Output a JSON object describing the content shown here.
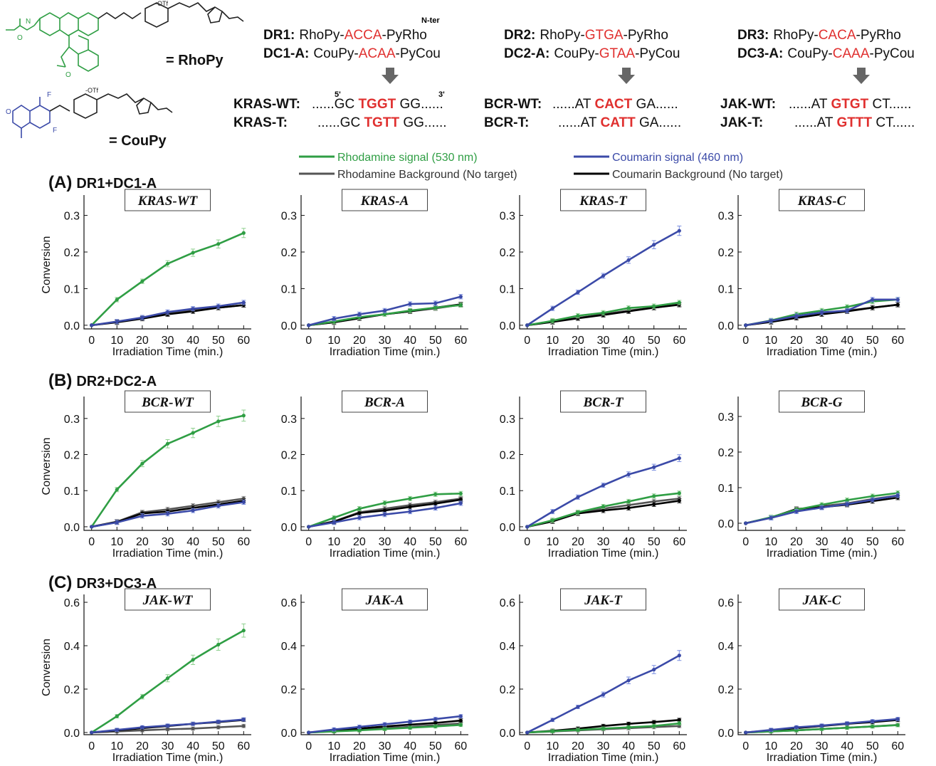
{
  "header": {
    "dyes": [
      {
        "label": "= RhoPy",
        "color": "#2f9e44",
        "counter_ion": "-OTf"
      },
      {
        "label": "= CouPy",
        "color": "#3b4aa8",
        "counter_ion": "-OTf"
      }
    ],
    "nter_label": "N-ter",
    "probe_groups": [
      {
        "dr": {
          "name": "DR1:",
          "prefix": "RhoPy-",
          "seq": "ACCA",
          "suffix": "-PyRho"
        },
        "dc": {
          "name": "DC1-A:",
          "prefix": "CouPy-",
          "seq": "ACAA",
          "suffix": "-PyCou"
        },
        "targets": [
          {
            "name": "KRAS-WT:",
            "left": "......GC ",
            "core": "TGGT",
            "right": " GG......",
            "five": "5'",
            "three": "3'"
          },
          {
            "name": "KRAS-T:",
            "left": "......GC ",
            "core": "TGTT",
            "right": " GG......"
          }
        ]
      },
      {
        "dr": {
          "name": "DR2:",
          "prefix": "RhoPy-",
          "seq": "GTGA",
          "suffix": "-PyRho"
        },
        "dc": {
          "name": "DC2-A:",
          "prefix": "CouPy-",
          "seq": "GTAA",
          "suffix": "-PyCou"
        },
        "targets": [
          {
            "name": "BCR-WT:",
            "left": "......AT ",
            "core": "CACT",
            "right": " GA......"
          },
          {
            "name": "BCR-T:",
            "left": "......AT ",
            "core": "CATT",
            "right": " GA......"
          }
        ]
      },
      {
        "dr": {
          "name": "DR3:",
          "prefix": "RhoPy-",
          "seq": "CACA",
          "suffix": "-PyRho"
        },
        "dc": {
          "name": "DC3-A:",
          "prefix": "CouPy-",
          "seq": "CAAA",
          "suffix": "-PyCou"
        },
        "targets": [
          {
            "name": "JAK-WT:",
            "left": "......AT ",
            "core": "GTGT",
            "right": " CT......"
          },
          {
            "name": "JAK-T:",
            "left": "......AT ",
            "core": "GTTT",
            "right": " CT......"
          }
        ]
      }
    ]
  },
  "legend": [
    {
      "label": "Rhodamine signal (530 nm)",
      "color": "#2f9e44",
      "text_color": "#2f9e44"
    },
    {
      "label": "Coumarin signal (460 nm)",
      "color": "#3b4aa8",
      "text_color": "#3b4aa8"
    },
    {
      "label": "Rhodamine Background (No target)",
      "color": "#555555",
      "text_color": "#333333"
    },
    {
      "label": "Coumarin Background (No target)",
      "color": "#000000",
      "text_color": "#333333"
    }
  ],
  "colors": {
    "rho": "#2f9e44",
    "cou": "#3b4aa8",
    "rho_bg": "#555555",
    "cou_bg": "#000000",
    "highlight": "#e0302f",
    "errorbar_rho": "#8fd08f",
    "errorbar_cou": "#7b8fe0"
  },
  "chart_data": [
    {
      "type": "line",
      "row": "(A) DR1+DC1-A",
      "title": "KRAS-WT",
      "xlabel": "Irradiation Time (min.)",
      "ylabel": "Conversion",
      "ylim": [
        -0.01,
        0.34
      ],
      "yticks": [
        "0.0",
        "0.1",
        "0.2",
        "0.3"
      ],
      "x": [
        0,
        10,
        20,
        30,
        40,
        50,
        60
      ],
      "series": [
        {
          "key": "rho",
          "values": [
            0,
            0.07,
            0.12,
            0.168,
            0.198,
            0.222,
            0.252
          ]
        },
        {
          "key": "rho_bg",
          "values": [
            0,
            0.009,
            0.02,
            0.032,
            0.042,
            0.048,
            0.055
          ]
        },
        {
          "key": "cou_bg",
          "values": [
            0,
            0.008,
            0.018,
            0.03,
            0.038,
            0.048,
            0.055
          ]
        },
        {
          "key": "cou",
          "values": [
            0,
            0.01,
            0.021,
            0.036,
            0.045,
            0.052,
            0.062
          ]
        }
      ]
    },
    {
      "type": "line",
      "title": "KRAS-A",
      "xlabel": "Irradiation Time (min.)",
      "ylim": [
        -0.01,
        0.34
      ],
      "yticks": [
        "0.0",
        "0.1",
        "0.2",
        "0.3"
      ],
      "x": [
        0,
        10,
        20,
        30,
        40,
        50,
        60
      ],
      "series": [
        {
          "key": "rho",
          "values": [
            0,
            0.01,
            0.022,
            0.03,
            0.04,
            0.048,
            0.055
          ]
        },
        {
          "key": "rho_bg",
          "values": [
            0,
            0.008,
            0.02,
            0.03,
            0.038,
            0.046,
            0.056
          ]
        },
        {
          "key": "cou_bg",
          "values": [
            0,
            0.008,
            0.019,
            0.03,
            0.038,
            0.048,
            0.057
          ]
        },
        {
          "key": "cou",
          "values": [
            0,
            0.018,
            0.03,
            0.04,
            0.058,
            0.06,
            0.078
          ]
        }
      ]
    },
    {
      "type": "line",
      "title": "KRAS-T",
      "xlabel": "Irradiation Time (min.)",
      "ylim": [
        -0.01,
        0.34
      ],
      "yticks": [
        "0.0",
        "0.1",
        "0.2",
        "0.3"
      ],
      "x": [
        0,
        10,
        20,
        30,
        40,
        50,
        60
      ],
      "series": [
        {
          "key": "rho",
          "values": [
            0,
            0.012,
            0.026,
            0.034,
            0.047,
            0.052,
            0.062
          ]
        },
        {
          "key": "rho_bg",
          "values": [
            0,
            0.01,
            0.02,
            0.03,
            0.04,
            0.048,
            0.057
          ]
        },
        {
          "key": "cou_bg",
          "values": [
            0,
            0.009,
            0.019,
            0.028,
            0.038,
            0.048,
            0.056
          ]
        },
        {
          "key": "cou",
          "values": [
            0,
            0.046,
            0.09,
            0.135,
            0.178,
            0.22,
            0.258
          ]
        }
      ]
    },
    {
      "type": "line",
      "title": "KRAS-C",
      "xlabel": "Irradiation Time (min.)",
      "ylim": [
        -0.01,
        0.34
      ],
      "yticks": [
        "0.0",
        "0.1",
        "0.2",
        "0.3"
      ],
      "x": [
        0,
        10,
        20,
        30,
        40,
        50,
        60
      ],
      "series": [
        {
          "key": "rho",
          "values": [
            0,
            0.013,
            0.03,
            0.04,
            0.05,
            0.065,
            0.07
          ]
        },
        {
          "key": "rho_bg",
          "values": [
            0,
            0.01,
            0.022,
            0.03,
            0.04,
            0.048,
            0.056
          ]
        },
        {
          "key": "cou_bg",
          "values": [
            0,
            0.009,
            0.02,
            0.03,
            0.038,
            0.048,
            0.056
          ]
        },
        {
          "key": "cou",
          "values": [
            0,
            0.012,
            0.025,
            0.035,
            0.04,
            0.07,
            0.07
          ]
        }
      ]
    },
    {
      "type": "line",
      "row": "(B) DR2+DC2-A",
      "title": "BCR-WT",
      "xlabel": "Irradiation Time (min.)",
      "ylabel": "Conversion",
      "ylim": [
        -0.01,
        0.345
      ],
      "yticks": [
        "0.0",
        "0.1",
        "0.2",
        "0.3"
      ],
      "x": [
        0,
        10,
        20,
        30,
        40,
        50,
        60
      ],
      "series": [
        {
          "key": "rho",
          "values": [
            0,
            0.103,
            0.175,
            0.23,
            0.26,
            0.292,
            0.308
          ]
        },
        {
          "key": "rho_bg",
          "values": [
            0,
            0.014,
            0.04,
            0.048,
            0.058,
            0.068,
            0.078
          ]
        },
        {
          "key": "cou_bg",
          "values": [
            0,
            0.013,
            0.037,
            0.042,
            0.052,
            0.062,
            0.072
          ]
        },
        {
          "key": "cou",
          "values": [
            0,
            0.012,
            0.03,
            0.036,
            0.045,
            0.058,
            0.068
          ]
        }
      ]
    },
    {
      "type": "line",
      "title": "BCR-A",
      "xlabel": "Irradiation Time (min.)",
      "ylim": [
        -0.01,
        0.345
      ],
      "yticks": [
        "0.0",
        "0.1",
        "0.2",
        "0.3"
      ],
      "x": [
        0,
        10,
        20,
        30,
        40,
        50,
        60
      ],
      "series": [
        {
          "key": "rho",
          "values": [
            0,
            0.025,
            0.05,
            0.066,
            0.078,
            0.09,
            0.092
          ]
        },
        {
          "key": "rho_bg",
          "values": [
            0,
            0.015,
            0.04,
            0.05,
            0.06,
            0.068,
            0.078
          ]
        },
        {
          "key": "cou_bg",
          "values": [
            0,
            0.014,
            0.038,
            0.045,
            0.055,
            0.064,
            0.075
          ]
        },
        {
          "key": "cou",
          "values": [
            0,
            0.012,
            0.025,
            0.034,
            0.042,
            0.052,
            0.065
          ]
        }
      ]
    },
    {
      "type": "line",
      "title": "BCR-T",
      "xlabel": "Irradiation Time (min.)",
      "ylim": [
        -0.01,
        0.345
      ],
      "yticks": [
        "0.0",
        "0.1",
        "0.2",
        "0.3"
      ],
      "x": [
        0,
        10,
        20,
        30,
        40,
        50,
        60
      ],
      "series": [
        {
          "key": "rho",
          "values": [
            0,
            0.018,
            0.04,
            0.056,
            0.07,
            0.085,
            0.093
          ]
        },
        {
          "key": "rho_bg",
          "values": [
            0,
            0.015,
            0.038,
            0.05,
            0.06,
            0.07,
            0.078
          ]
        },
        {
          "key": "cou_bg",
          "values": [
            0,
            0.015,
            0.037,
            0.045,
            0.052,
            0.062,
            0.072
          ]
        },
        {
          "key": "cou",
          "values": [
            0,
            0.042,
            0.082,
            0.115,
            0.145,
            0.165,
            0.19
          ]
        }
      ]
    },
    {
      "type": "line",
      "title": "BCR-G",
      "xlabel": "Irradiation Time (min.)",
      "ylim": [
        -0.02,
        0.34
      ],
      "yticks": [
        "0.0",
        "0.1",
        "0.2",
        "0.3"
      ],
      "x": [
        0,
        10,
        20,
        30,
        40,
        50,
        60
      ],
      "series": [
        {
          "key": "rho",
          "values": [
            0,
            0.017,
            0.038,
            0.052,
            0.065,
            0.076,
            0.085
          ]
        },
        {
          "key": "rho_bg",
          "values": [
            0,
            0.016,
            0.036,
            0.048,
            0.056,
            0.068,
            0.078
          ]
        },
        {
          "key": "cou_bg",
          "values": [
            0,
            0.016,
            0.04,
            0.045,
            0.052,
            0.062,
            0.072
          ]
        },
        {
          "key": "cou",
          "values": [
            0,
            0.015,
            0.033,
            0.044,
            0.054,
            0.066,
            0.078
          ]
        }
      ]
    },
    {
      "type": "line",
      "row": "(C) DR3+DC3-A",
      "title": "JAK-WT",
      "xlabel": "Irradiation Time (min.)",
      "ylabel": "Conversion",
      "ylim": [
        -0.01,
        0.61
      ],
      "yticks": [
        "0.0",
        "0.2",
        "0.4",
        "0.6"
      ],
      "x": [
        0,
        10,
        20,
        30,
        40,
        50,
        60
      ],
      "series": [
        {
          "key": "rho",
          "values": [
            0,
            0.075,
            0.165,
            0.25,
            0.335,
            0.405,
            0.47
          ]
        },
        {
          "key": "rho_bg",
          "values": [
            0,
            0.005,
            0.01,
            0.015,
            0.018,
            0.024,
            0.03
          ]
        },
        {
          "key": "cou_bg",
          "values": [
            0,
            0.01,
            0.02,
            0.03,
            0.04,
            0.048,
            0.058
          ]
        },
        {
          "key": "cou",
          "values": [
            0,
            0.012,
            0.024,
            0.032,
            0.04,
            0.05,
            0.06
          ]
        }
      ]
    },
    {
      "type": "line",
      "title": "JAK-A",
      "xlabel": "Irradiation Time (min.)",
      "ylim": [
        -0.01,
        0.61
      ],
      "yticks": [
        "0.0",
        "0.2",
        "0.4",
        "0.6"
      ],
      "x": [
        0,
        10,
        20,
        30,
        40,
        50,
        60
      ],
      "series": [
        {
          "key": "rho",
          "values": [
            0,
            0.005,
            0.01,
            0.016,
            0.022,
            0.028,
            0.035
          ]
        },
        {
          "key": "rho_bg",
          "values": [
            0,
            0.006,
            0.012,
            0.02,
            0.026,
            0.034,
            0.042
          ]
        },
        {
          "key": "cou_bg",
          "values": [
            0,
            0.008,
            0.018,
            0.028,
            0.036,
            0.044,
            0.055
          ]
        },
        {
          "key": "cou",
          "values": [
            0,
            0.014,
            0.026,
            0.038,
            0.05,
            0.062,
            0.075
          ]
        }
      ]
    },
    {
      "type": "line",
      "title": "JAK-T",
      "xlabel": "Irradiation Time (min.)",
      "ylim": [
        -0.01,
        0.61
      ],
      "yticks": [
        "0.0",
        "0.2",
        "0.4",
        "0.6"
      ],
      "x": [
        0,
        10,
        20,
        30,
        40,
        50,
        60
      ],
      "series": [
        {
          "key": "rho",
          "values": [
            0,
            0.006,
            0.012,
            0.018,
            0.024,
            0.03,
            0.042
          ]
        },
        {
          "key": "rho_bg",
          "values": [
            0,
            0.005,
            0.01,
            0.015,
            0.02,
            0.025,
            0.03
          ]
        },
        {
          "key": "cou_bg",
          "values": [
            0,
            0.008,
            0.018,
            0.03,
            0.04,
            0.048,
            0.058
          ]
        },
        {
          "key": "cou",
          "values": [
            0,
            0.058,
            0.118,
            0.175,
            0.24,
            0.29,
            0.355
          ]
        }
      ]
    },
    {
      "type": "line",
      "title": "JAK-C",
      "xlabel": "Irradiation Time (min.)",
      "ylim": [
        -0.01,
        0.61
      ],
      "yticks": [
        "0.0",
        "0.2",
        "0.4",
        "0.6"
      ],
      "x": [
        0,
        10,
        20,
        30,
        40,
        50,
        60
      ],
      "series": [
        {
          "key": "rho",
          "values": [
            0,
            0.005,
            0.01,
            0.016,
            0.022,
            0.028,
            0.034
          ]
        },
        {
          "key": "rho_bg",
          "values": [
            0,
            0.005,
            0.01,
            0.016,
            0.022,
            0.028,
            0.035
          ]
        },
        {
          "key": "cou_bg",
          "values": [
            0,
            0.01,
            0.02,
            0.03,
            0.04,
            0.048,
            0.058
          ]
        },
        {
          "key": "cou",
          "values": [
            0,
            0.012,
            0.024,
            0.032,
            0.042,
            0.052,
            0.062
          ]
        }
      ]
    }
  ]
}
